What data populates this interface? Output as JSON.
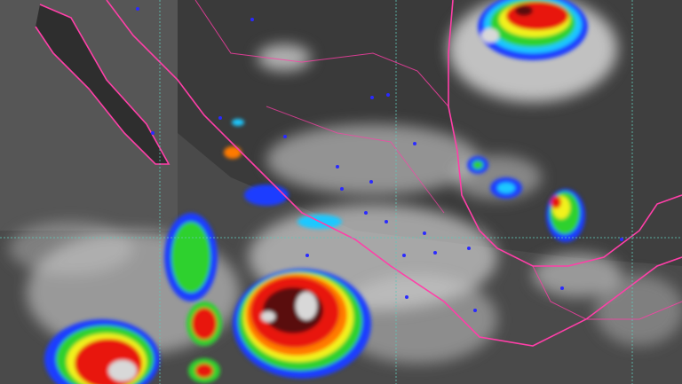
{
  "map": {
    "kind": "infrared satellite image",
    "labels_legible": false,
    "colors": {
      "background": "#4a4a4a",
      "cloud": "#e8e8e8",
      "border": "#ff3fa8",
      "gridline": "#5fc9b8",
      "city_marker": "#2a2aff",
      "storm_scale": [
        "#1a3cff",
        "#1ec8ff",
        "#2ed12e",
        "#f2f21a",
        "#ff7a00",
        "#e8150f",
        "#5a0a0a",
        "#d8d8d8"
      ]
    }
  }
}
